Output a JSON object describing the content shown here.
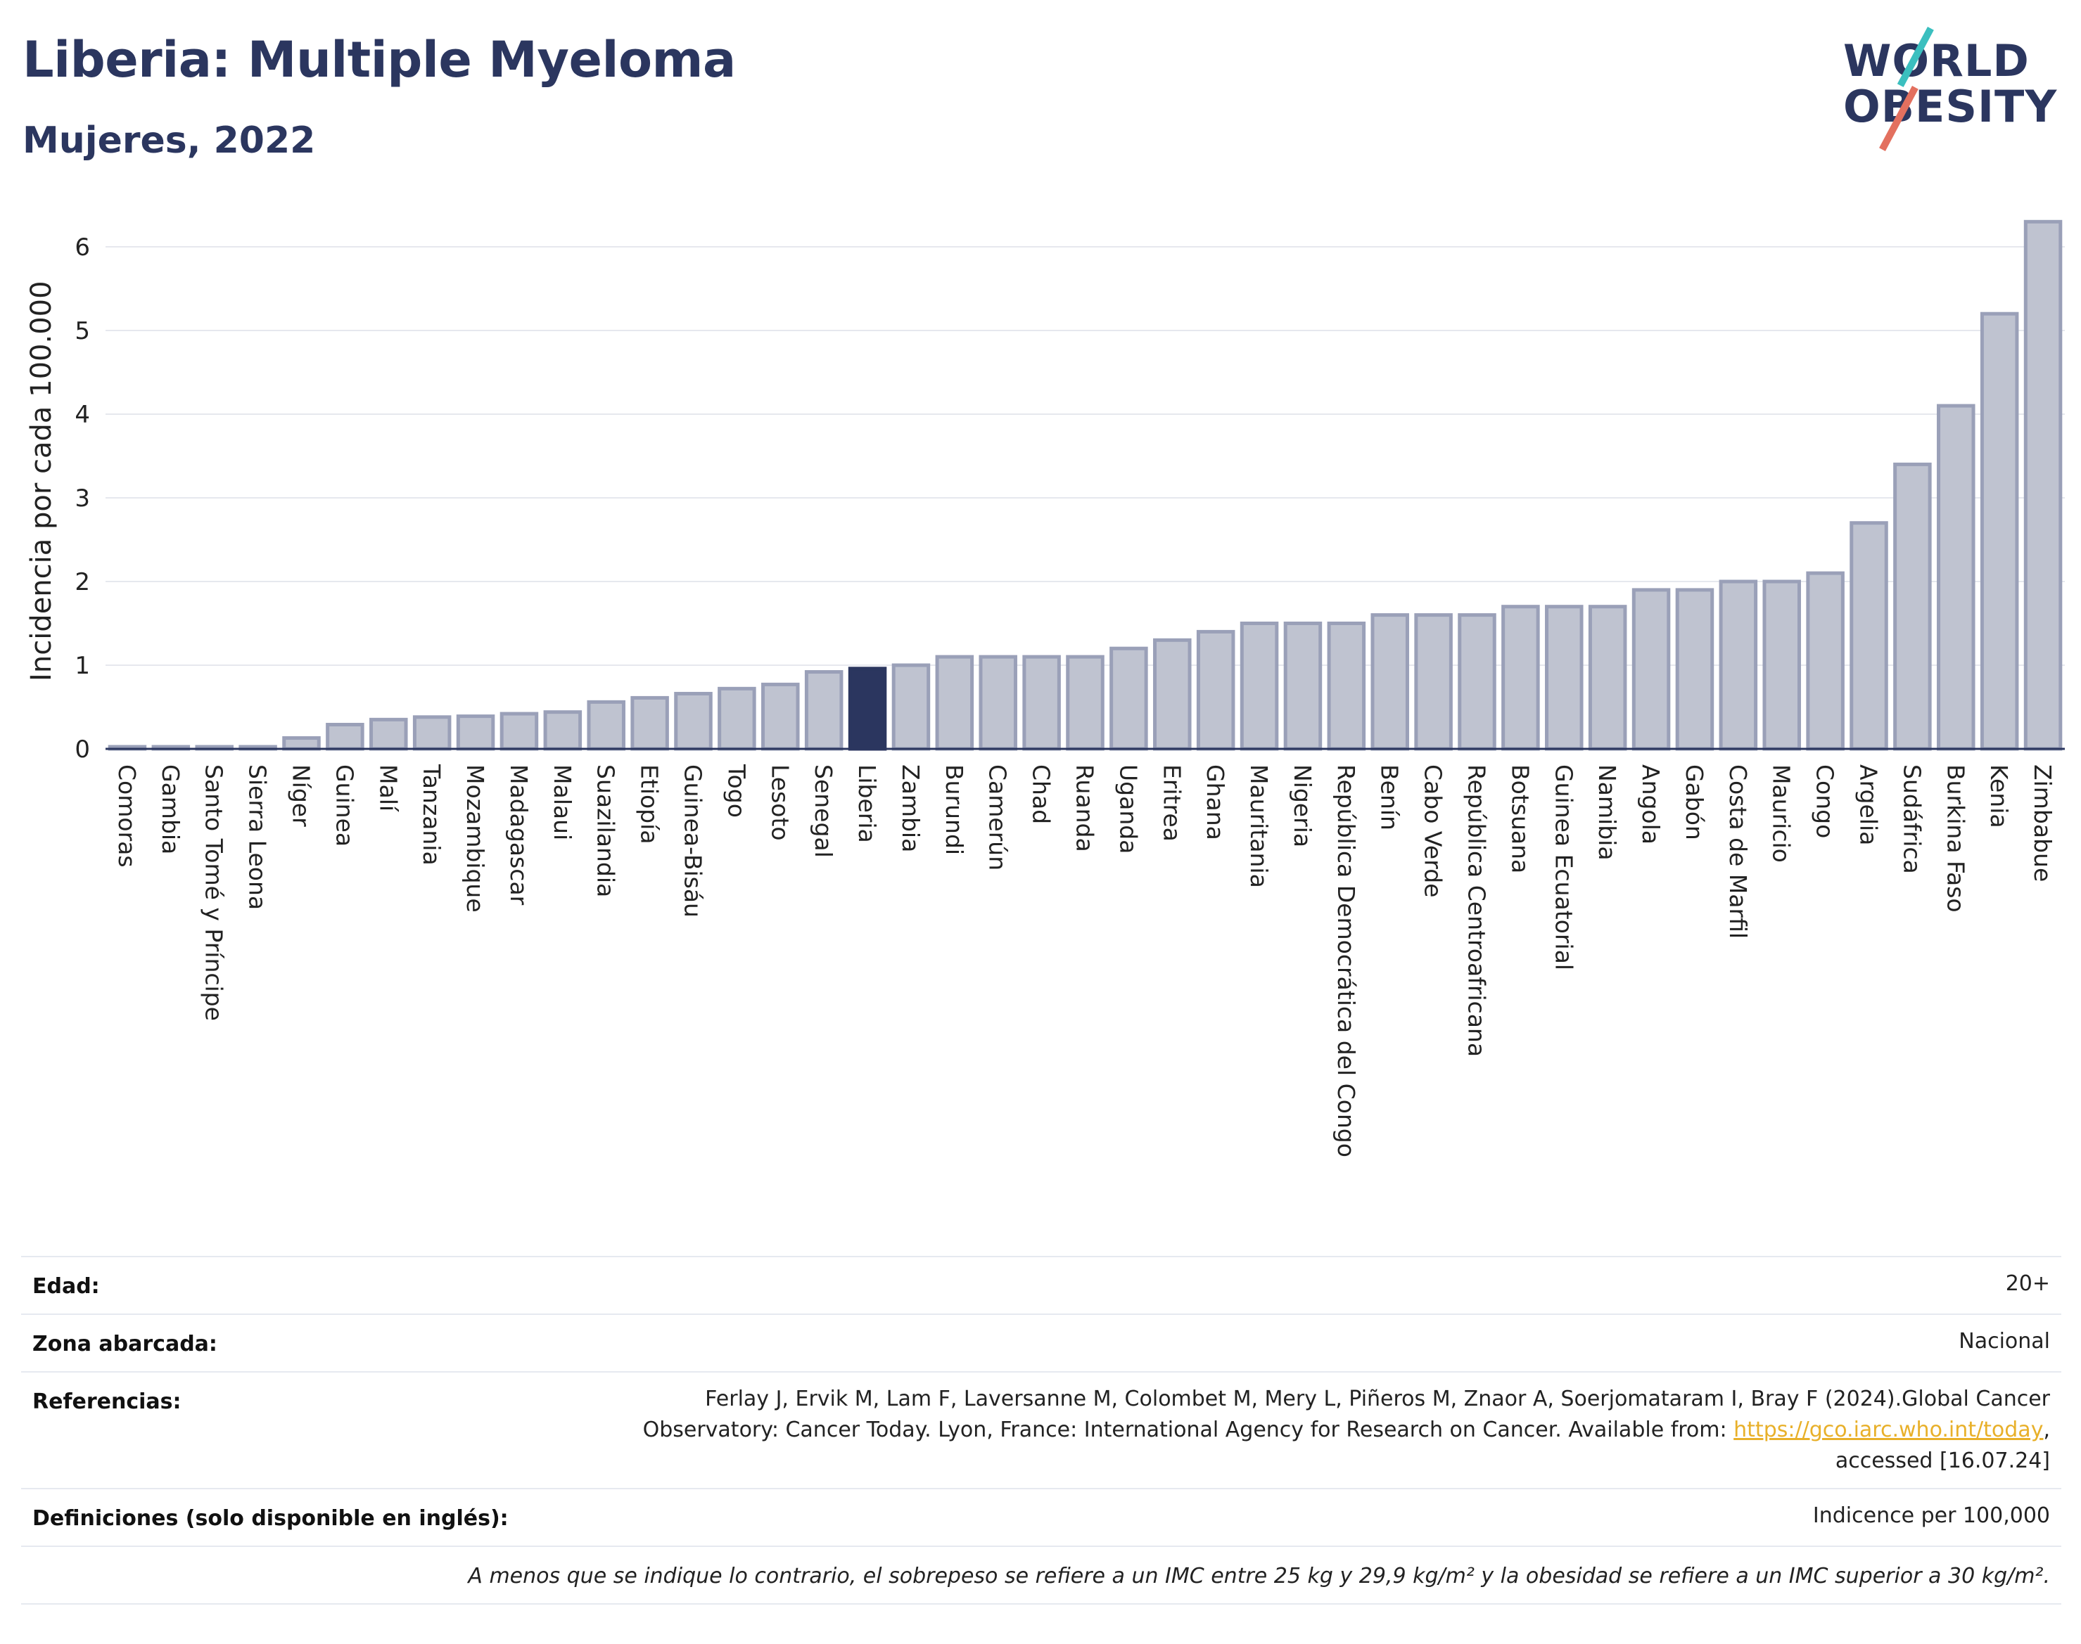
{
  "header": {
    "title": "Liberia: Multiple Myeloma",
    "subtitle": "Mujeres, 2022",
    "logo_line1": "WORLD",
    "logo_line2": "OBESITY"
  },
  "colors": {
    "highlight_bar": "#2b365f",
    "bar_fill": "#bfc3d0",
    "bar_stroke": "#9aa0b8",
    "title": "#2b365f",
    "gridline": "#e6e8ee",
    "link": "#e8b02a"
  },
  "chart_data": {
    "type": "bar",
    "ylabel": "Incidencia por cada 100.000",
    "ylim": [
      0,
      6.5
    ],
    "yticks": [
      0,
      1,
      2,
      3,
      4,
      5,
      6
    ],
    "grid": true,
    "highlight": "Liberia",
    "categories": [
      "Comoras",
      "Gambia",
      "Santo Tomé y Príncipe",
      "Sierra Leona",
      "Níger",
      "Guinea",
      "Malí",
      "Tanzania",
      "Mozambique",
      "Madagascar",
      "Malaui",
      "Suazilandia",
      "Etiopía",
      "Guinea-Bisáu",
      "Togo",
      "Lesoto",
      "Senegal",
      "Liberia",
      "Zambia",
      "Burundi",
      "Camerún",
      "Chad",
      "Ruanda",
      "Uganda",
      "Eritrea",
      "Ghana",
      "Mauritania",
      "Nigeria",
      "República Democrática del Congo",
      "Benín",
      "Cabo Verde",
      "República Centroafricana",
      "Botsuana",
      "Guinea Ecuatorial",
      "Namibia",
      "Angola",
      "Gabón",
      "Costa de Marfil",
      "Mauricio",
      "Congo",
      "Argelia",
      "Sudáfrica",
      "Burkina Faso",
      "Kenia",
      "Zimbabue"
    ],
    "values": [
      0.02,
      0.02,
      0.02,
      0.02,
      0.13,
      0.29,
      0.35,
      0.38,
      0.39,
      0.42,
      0.44,
      0.56,
      0.61,
      0.66,
      0.72,
      0.77,
      0.92,
      0.96,
      1.0,
      1.1,
      1.1,
      1.1,
      1.1,
      1.2,
      1.3,
      1.4,
      1.5,
      1.5,
      1.5,
      1.6,
      1.6,
      1.6,
      1.7,
      1.7,
      1.7,
      1.9,
      1.9,
      2.0,
      2.0,
      2.1,
      2.7,
      3.4,
      4.1,
      5.2,
      6.3
    ]
  },
  "metadata": {
    "age_label": "Edad:",
    "age_value": "20+",
    "area_label": "Zona abarcada:",
    "area_value": "Nacional",
    "refs_label": "Referencias:",
    "refs_line1": "Ferlay J, Ervik M, Lam F, Laversanne M, Colombet M, Mery L, Piñeros M, Znaor A, Soerjomataram I, Bray F (2024).Global Cancer",
    "refs_line2_pre": "Observatory: Cancer Today. Lyon, France: International Agency for Research on Cancer. Available from: ",
    "refs_link": "https://gco.iarc.who.int/today",
    "refs_line2_post": ",",
    "refs_line3": "accessed [16.07.24]",
    "defs_label": "Definiciones (solo disponible en inglés):",
    "defs_value": "Indicence per 100,000",
    "note": "A menos que se indique lo contrario, el sobrepeso se refiere a un IMC entre 25 kg y 29,9 kg/m² y la obesidad se refiere a un IMC superior a 30 kg/m²."
  }
}
